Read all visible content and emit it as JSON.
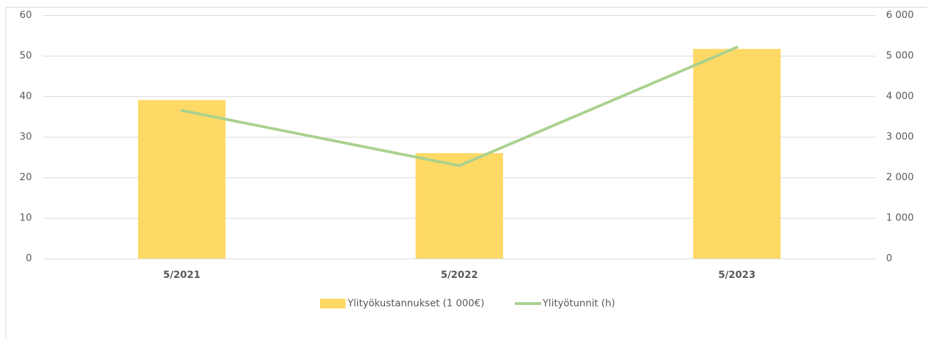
{
  "chart_data": {
    "type": "bar",
    "categories": [
      "5/2021",
      "5/2022",
      "5/2023"
    ],
    "series": [
      {
        "name": "Ylityökustannukset (1 000€)",
        "type": "bar",
        "axis": "y",
        "color": "#ffd966",
        "values": [
          39.1,
          26,
          51.7
        ]
      },
      {
        "name": "Ylityötunnit (h)",
        "type": "line",
        "axis": "y2",
        "color": "#a9d18e",
        "values": [
          3650,
          2290,
          5210
        ]
      }
    ],
    "ylim": [
      0,
      60
    ],
    "yticks": [
      0,
      10,
      20,
      30,
      40,
      50,
      60
    ],
    "y2lim": [
      0,
      6000
    ],
    "y2ticks": [
      0,
      {
        "value": 1000,
        "label": "1 000"
      },
      {
        "value": 2000,
        "label": "2 000"
      },
      {
        "value": 3000,
        "label": "3 000"
      },
      {
        "value": 4000,
        "label": "4 000"
      },
      {
        "value": 5000,
        "label": "5 000"
      },
      {
        "value": 6000,
        "label": "6 000"
      }
    ],
    "grid": true,
    "legend": "bottom"
  }
}
